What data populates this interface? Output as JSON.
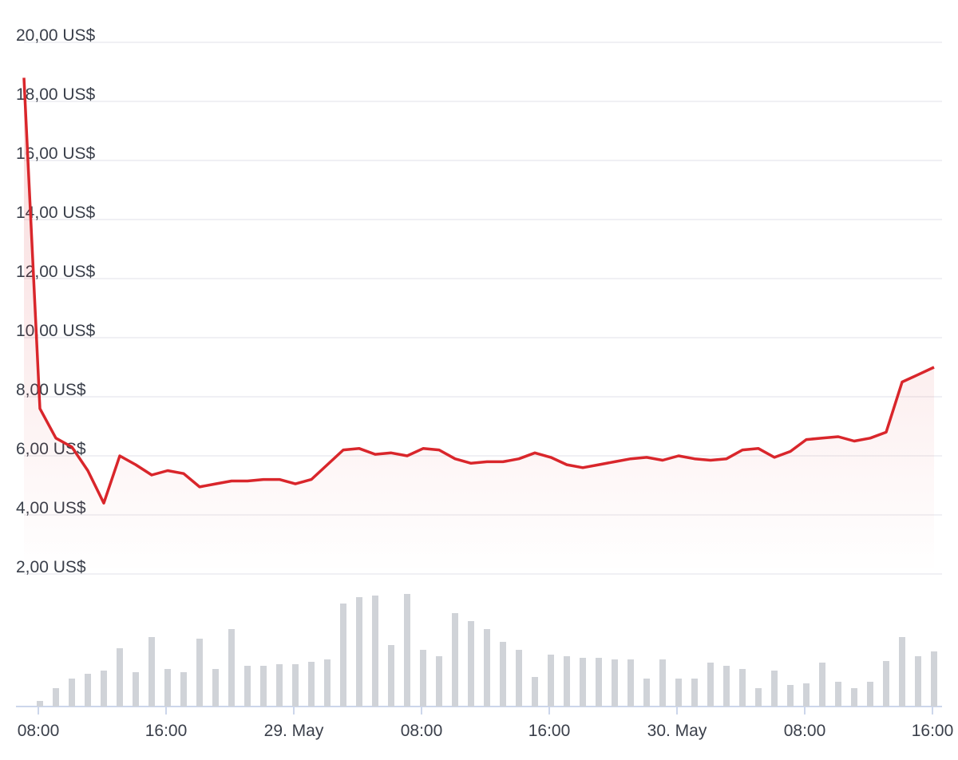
{
  "chart_data": {
    "type": "line",
    "x": [
      7.1,
      8.1,
      9.1,
      10.1,
      11.1,
      12.1,
      13.1,
      14.1,
      15.1,
      16.1,
      17.1,
      18.1,
      19.1,
      20.1,
      21.1,
      22.1,
      23.1,
      24.1,
      25.1,
      26.1,
      27.1,
      28.1,
      29.1,
      30.1,
      31.1,
      32.1,
      33.1,
      34.1,
      35.1,
      36.1,
      37.1,
      38.1,
      39.1,
      40.1,
      41.1,
      42.1,
      43.1,
      44.1,
      45.1,
      46.1,
      47.1,
      48.1,
      49.1,
      50.1,
      51.1,
      52.1,
      53.1,
      54.1,
      55.1,
      56.1,
      57.1,
      58.1,
      59.1,
      60.1,
      61.1,
      62.1,
      63.1,
      64.1
    ],
    "series": [
      {
        "name": "Price",
        "color": "#d9262b",
        "values": [
          18.8,
          7.6,
          6.6,
          6.3,
          5.5,
          4.4,
          6.0,
          5.7,
          5.35,
          5.5,
          5.4,
          4.95,
          5.05,
          5.15,
          5.15,
          5.2,
          5.2,
          5.05,
          5.2,
          5.7,
          6.2,
          6.25,
          6.05,
          6.1,
          6.0,
          6.25,
          6.2,
          5.9,
          5.75,
          5.8,
          5.8,
          5.9,
          6.1,
          5.95,
          5.7,
          5.6,
          5.7,
          5.8,
          5.9,
          5.95,
          5.85,
          6.0,
          5.9,
          5.85,
          5.9,
          6.2,
          6.25,
          5.95,
          6.15,
          6.55,
          6.6,
          6.65,
          6.5,
          6.6,
          6.8,
          8.5,
          8.75,
          9.0
        ]
      },
      {
        "name": "Volume",
        "type": "bar",
        "axis": "y2",
        "color": "#d0d3d8",
        "values": [
          null,
          7,
          23,
          35,
          41,
          45,
          73,
          43,
          87,
          47,
          43,
          85,
          47,
          97,
          51,
          51,
          53,
          53,
          56,
          59,
          129,
          137,
          139,
          77,
          141,
          71,
          63,
          117,
          107,
          97,
          81,
          71,
          37,
          65,
          63,
          61,
          61,
          59,
          59,
          35,
          59,
          35,
          35,
          55,
          51,
          47,
          23,
          45,
          27,
          29,
          55,
          31,
          23,
          31,
          57,
          87,
          63,
          69
        ]
      }
    ],
    "xlim": [
      6.6,
      64.6
    ],
    "xticks": [
      {
        "value": 8,
        "label": "08:00"
      },
      {
        "value": 16,
        "label": "16:00"
      },
      {
        "value": 24,
        "label": "29. May"
      },
      {
        "value": 32,
        "label": "08:00"
      },
      {
        "value": 40,
        "label": "16:00"
      },
      {
        "value": 48,
        "label": "30. May"
      },
      {
        "value": 56,
        "label": "08:00"
      },
      {
        "value": 64,
        "label": "16:00"
      }
    ],
    "ylim": [
      2,
      20
    ],
    "yticks": [
      {
        "value": 2,
        "label": "2,00 US$"
      },
      {
        "value": 4,
        "label": "4,00 US$"
      },
      {
        "value": 6,
        "label": "6,00 US$"
      },
      {
        "value": 8,
        "label": "8,00 US$"
      },
      {
        "value": 10,
        "label": "10,00 US$"
      },
      {
        "value": 12,
        "label": "12,00 US$"
      },
      {
        "value": 14,
        "label": "14,00 US$"
      },
      {
        "value": 16,
        "label": "16,00 US$"
      },
      {
        "value": 18,
        "label": "18,00 US$"
      },
      {
        "value": 20,
        "label": "20,00 US$"
      }
    ],
    "y2lim": [
      0,
      160
    ],
    "grid": true
  }
}
